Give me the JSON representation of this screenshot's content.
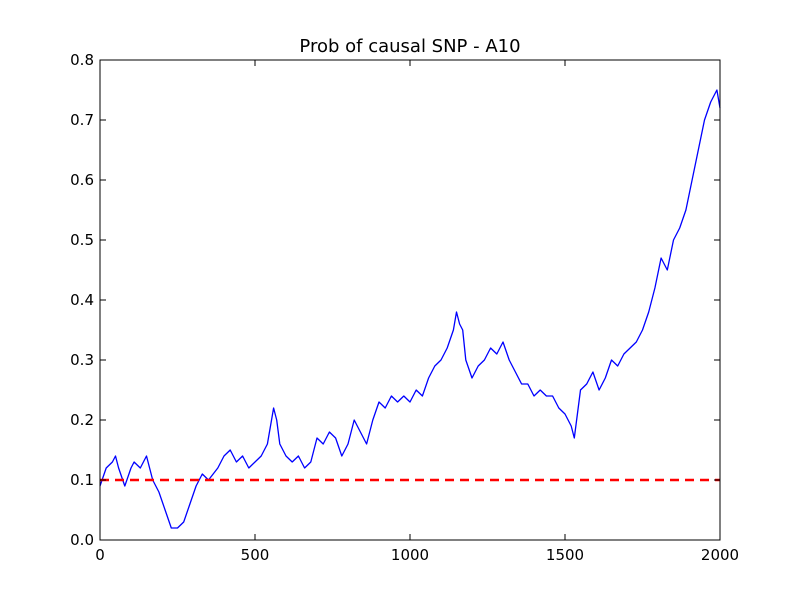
{
  "chart_data": {
    "type": "line",
    "title": "Prob of causal SNP - A10",
    "xlabel": "",
    "ylabel": "",
    "xlim": [
      0,
      2000
    ],
    "ylim": [
      0.0,
      0.8
    ],
    "x_ticks": [
      0,
      500,
      1000,
      1500,
      2000
    ],
    "x_tick_labels": [
      "0",
      "500",
      "1000",
      "1500",
      "2000"
    ],
    "y_ticks": [
      0.0,
      0.1,
      0.2,
      0.3,
      0.4,
      0.5,
      0.6,
      0.7,
      0.8
    ],
    "y_tick_labels": [
      "0.0",
      "0.1",
      "0.2",
      "0.3",
      "0.4",
      "0.5",
      "0.6",
      "0.7",
      "0.8"
    ],
    "grid": false,
    "legend": "none",
    "series": [
      {
        "color": "#0000ff",
        "style": "solid",
        "x": [
          0,
          20,
          40,
          50,
          60,
          80,
          100,
          110,
          130,
          150,
          160,
          170,
          190,
          210,
          230,
          250,
          270,
          290,
          310,
          330,
          350,
          380,
          400,
          420,
          440,
          460,
          480,
          500,
          520,
          540,
          560,
          570,
          580,
          600,
          620,
          640,
          660,
          680,
          700,
          720,
          740,
          760,
          780,
          800,
          820,
          840,
          860,
          880,
          900,
          920,
          940,
          960,
          980,
          1000,
          1020,
          1040,
          1060,
          1080,
          1100,
          1120,
          1140,
          1150,
          1160,
          1170,
          1180,
          1200,
          1220,
          1240,
          1260,
          1280,
          1300,
          1320,
          1340,
          1360,
          1380,
          1400,
          1420,
          1440,
          1460,
          1480,
          1500,
          1520,
          1530,
          1550,
          1570,
          1590,
          1610,
          1630,
          1650,
          1670,
          1690,
          1710,
          1730,
          1750,
          1770,
          1790,
          1810,
          1830,
          1850,
          1870,
          1890,
          1910,
          1930,
          1950,
          1970,
          1990,
          2000
        ],
        "y": [
          0.09,
          0.12,
          0.13,
          0.14,
          0.12,
          0.09,
          0.12,
          0.13,
          0.12,
          0.14,
          0.12,
          0.1,
          0.08,
          0.05,
          0.02,
          0.02,
          0.03,
          0.06,
          0.09,
          0.11,
          0.1,
          0.12,
          0.14,
          0.15,
          0.13,
          0.14,
          0.12,
          0.13,
          0.14,
          0.16,
          0.22,
          0.2,
          0.16,
          0.14,
          0.13,
          0.14,
          0.12,
          0.13,
          0.17,
          0.16,
          0.18,
          0.17,
          0.14,
          0.16,
          0.2,
          0.18,
          0.16,
          0.2,
          0.23,
          0.22,
          0.24,
          0.23,
          0.24,
          0.23,
          0.25,
          0.24,
          0.27,
          0.29,
          0.3,
          0.32,
          0.35,
          0.38,
          0.36,
          0.35,
          0.3,
          0.27,
          0.29,
          0.3,
          0.32,
          0.31,
          0.33,
          0.3,
          0.28,
          0.26,
          0.26,
          0.24,
          0.25,
          0.24,
          0.24,
          0.22,
          0.21,
          0.19,
          0.17,
          0.25,
          0.26,
          0.28,
          0.25,
          0.27,
          0.3,
          0.29,
          0.31,
          0.32,
          0.33,
          0.35,
          0.38,
          0.42,
          0.47,
          0.45,
          0.5,
          0.52,
          0.55,
          0.6,
          0.65,
          0.7,
          0.73,
          0.75,
          0.72
        ]
      },
      {
        "color": "#ff0000",
        "style": "dashed",
        "x": [
          0,
          2000
        ],
        "y": [
          0.1,
          0.1
        ]
      }
    ]
  }
}
